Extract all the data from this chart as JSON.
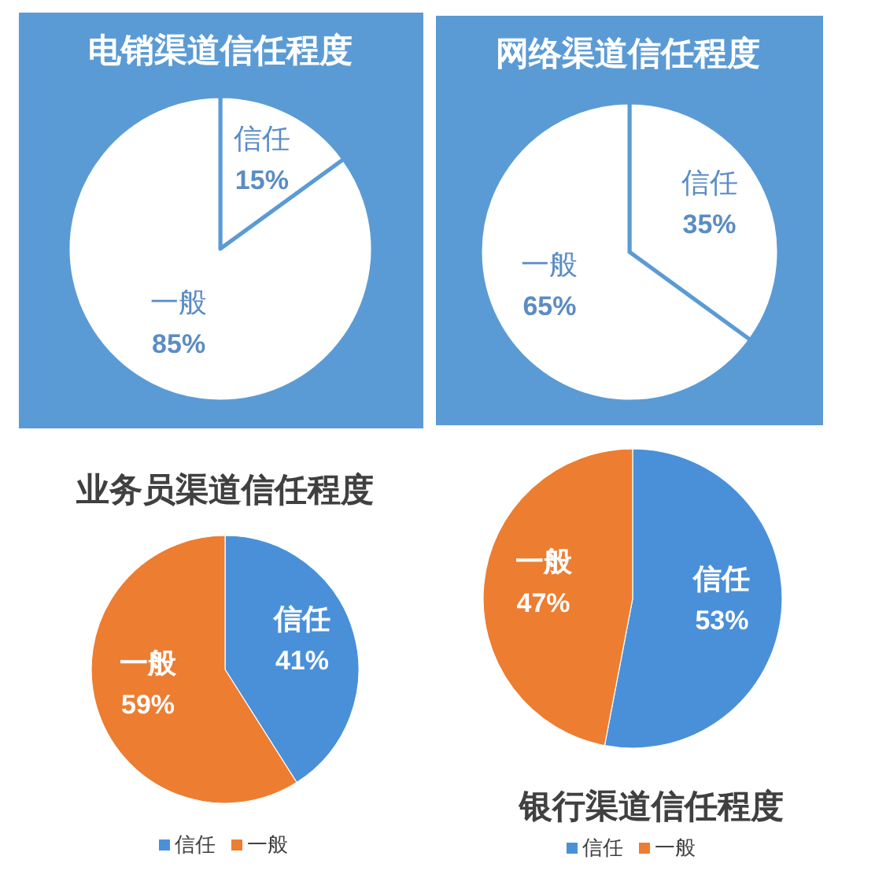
{
  "chart_data": [
    {
      "type": "pie",
      "title": "电销渠道信任程度",
      "categories": [
        "信任",
        "一般"
      ],
      "values": [
        15,
        85
      ],
      "colors": [
        "#ffffff",
        "#ffffff"
      ],
      "value_labels": [
        "15%",
        "85%"
      ]
    },
    {
      "type": "pie",
      "title": "网络渠道信任程度",
      "categories": [
        "信任",
        "一般"
      ],
      "values": [
        35,
        65
      ],
      "colors": [
        "#ffffff",
        "#ffffff"
      ],
      "value_labels": [
        "35%",
        "65%"
      ]
    },
    {
      "type": "pie",
      "title": "业务员渠道信任程度",
      "categories": [
        "信任",
        "一般"
      ],
      "values": [
        41,
        59
      ],
      "colors": [
        "#4a90d9",
        "#ed7d31"
      ],
      "value_labels": [
        "41%",
        "59%"
      ],
      "legend": "bottom"
    },
    {
      "type": "pie",
      "title": "银行渠道信任程度",
      "categories": [
        "信任",
        "一般"
      ],
      "values": [
        53,
        47
      ],
      "colors": [
        "#4a90d9",
        "#ed7d31"
      ],
      "value_labels": [
        "53%",
        "47%"
      ],
      "legend": "bottom"
    }
  ]
}
